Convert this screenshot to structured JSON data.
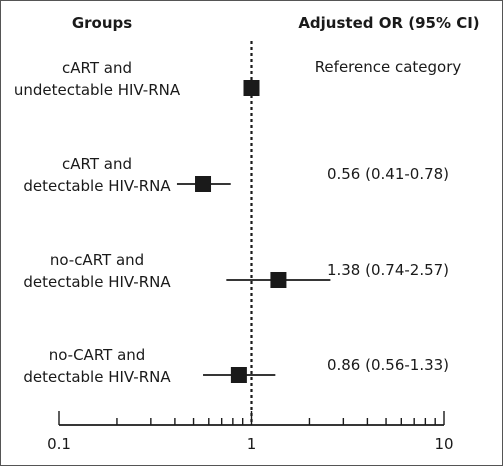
{
  "chart_data": {
    "type": "forest",
    "column_headers": {
      "groups": "Groups",
      "estimate": "Adjusted OR (95% CI)"
    },
    "rows": [
      {
        "label_lines": [
          "cART and",
          "undetectable HIV-RNA"
        ],
        "or": 1.0,
        "ci": null,
        "estimate_text": "Reference category"
      },
      {
        "label_lines": [
          "cART and",
          "detectable HIV-RNA"
        ],
        "or": 0.56,
        "ci": [
          0.41,
          0.78
        ],
        "estimate_text": "0.56 (0.41-0.78)"
      },
      {
        "label_lines": [
          "no-cART and",
          "detectable HIV-RNA"
        ],
        "or": 1.38,
        "ci": [
          0.74,
          2.57
        ],
        "estimate_text": "1.38 (0.74-2.57)"
      },
      {
        "label_lines": [
          "no-CART and",
          "detectable HIV-RNA"
        ],
        "or": 0.86,
        "ci": [
          0.56,
          1.33
        ],
        "estimate_text": "0.86 (0.56-1.33)"
      }
    ],
    "x_axis": {
      "scale": "log",
      "range": [
        0.1,
        10
      ],
      "tick_labels": [
        "0.1",
        "1",
        "10"
      ]
    },
    "reference_line": {
      "value": 1,
      "style": "dotted"
    },
    "marker": "square",
    "colors": {
      "marker": "#1a1a1a",
      "line": "#1a1a1a"
    }
  }
}
